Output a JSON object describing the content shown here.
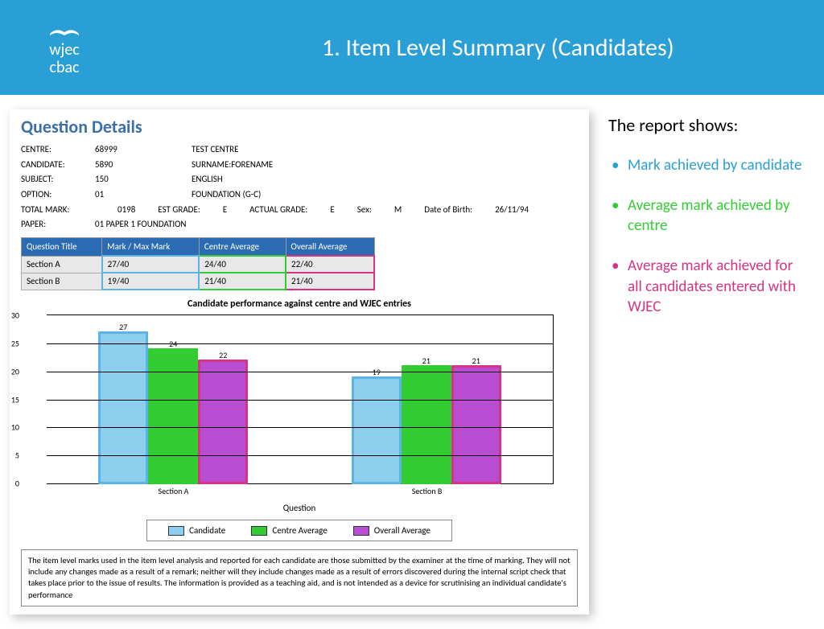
{
  "header": {
    "logo_top": "wjec",
    "logo_bottom": "cbac",
    "title": "1. Item Level Summary (Candidates)"
  },
  "report": {
    "title": "Question Details",
    "details": {
      "centre_label": "CENTRE:",
      "centre_val": "68999",
      "centre_name": "TEST CENTRE",
      "candidate_label": "CANDIDATE:",
      "candidate_val": "5890",
      "candidate_name": "SURNAME:FORENAME",
      "subject_label": "SUBJECT:",
      "subject_val": "150",
      "subject_name": "ENGLISH",
      "option_label": "OPTION:",
      "option_val": "01",
      "option_name": "FOUNDATION (G-C)",
      "totalmark_label": "TOTAL MARK:",
      "totalmark_val": "0198",
      "estgrade_label": "EST GRADE:",
      "estgrade_val": "E",
      "actualgrade_label": "ACTUAL GRADE:",
      "actualgrade_val": "E",
      "sex_label": "Sex:",
      "sex_val": "M",
      "dob_label": "Date of Birth:",
      "dob_val": "26/11/94",
      "paper_label": "PAPER:",
      "paper_val": "01   PAPER 1 FOUNDATION"
    },
    "table": {
      "headers": [
        "Question Title",
        "Mark / Max Mark",
        "Centre Average",
        "Overall Average"
      ],
      "rows": [
        [
          "Section A",
          "27/40",
          "24/40",
          "22/40"
        ],
        [
          "Section B",
          "19/40",
          "21/40",
          "21/40"
        ]
      ],
      "col_highlight": [
        "",
        "hl-blue",
        "hl-green",
        "hl-pink"
      ]
    },
    "chart": {
      "title": "Candidate performance against centre and WJEC entries",
      "ymax": 30,
      "ytick_step": 5,
      "categories": [
        "Section A",
        "Section B"
      ],
      "series": [
        {
          "name": "Candidate",
          "color": "#8ecff0",
          "values": [
            27,
            19
          ],
          "hl": "hl-blue"
        },
        {
          "name": "Centre Average",
          "color": "#33cc33",
          "values": [
            24,
            21
          ],
          "hl": "hl-green"
        },
        {
          "name": "Overall Average",
          "color": "#b84dd1",
          "values": [
            22,
            21
          ],
          "hl": "hl-pink"
        }
      ],
      "axis_label": "Question",
      "legend_labels": [
        "Candidate",
        "Centre Average",
        "Overall Average"
      ]
    },
    "footnote": "The item level marks used in the item level analysis and reported for each candidate are those submitted by the examiner at the time of marking. They will not include any changes made as a result of a remark; neither will they include changes made as a result of errors discovered during the internal script check that takes place prior to the issue of results. The information is provided as a teaching aid, and is not intended as a device for scrutinising an individual candidate's performance"
  },
  "side": {
    "title": "The report shows:",
    "items": [
      {
        "text": "Mark achieved by candidate",
        "cls": "li-blue"
      },
      {
        "text": "Average mark achieved by centre",
        "cls": "li-green"
      },
      {
        "text": "Average mark achieved for all candidates entered with WJEC",
        "cls": "li-pink"
      }
    ]
  }
}
